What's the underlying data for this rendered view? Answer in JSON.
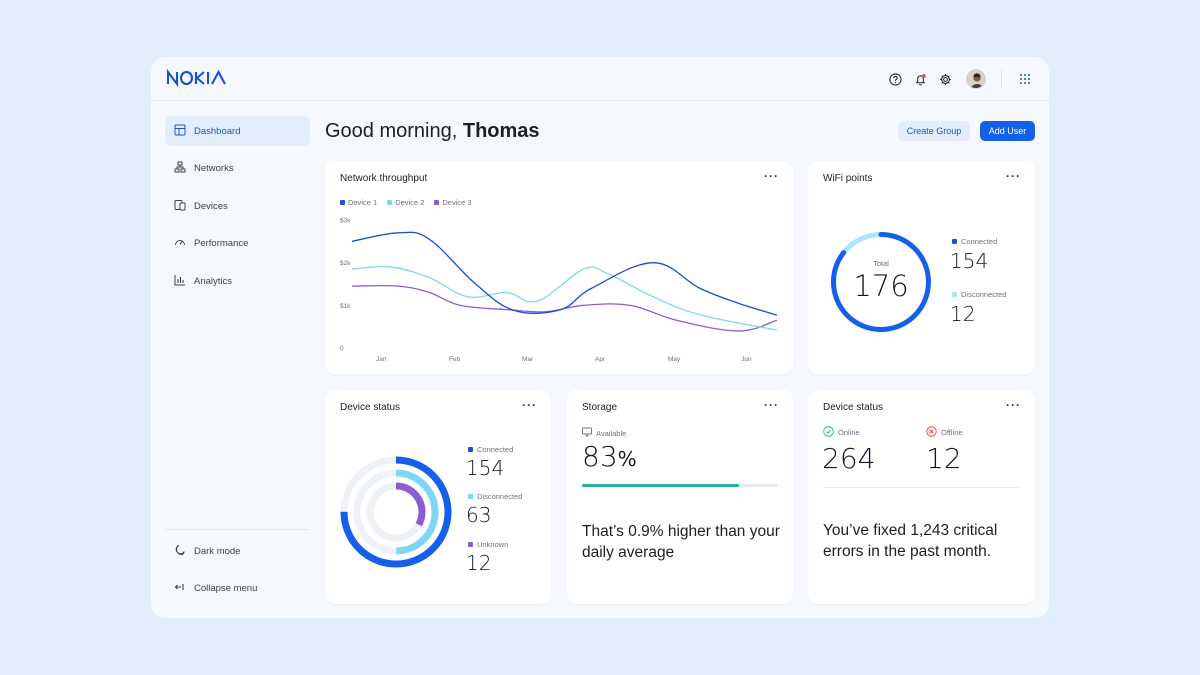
{
  "brand": {
    "logo_text": "NOKIA"
  },
  "topbar": {
    "icons": [
      "help-icon",
      "bell-icon",
      "settings-icon",
      "avatar",
      "apps-grid-icon"
    ]
  },
  "sidebar": {
    "items": [
      {
        "label": "Dashboard",
        "icon": "dashboard-icon",
        "active": true
      },
      {
        "label": "Networks",
        "icon": "network-icon",
        "active": false
      },
      {
        "label": "Devices",
        "icon": "devices-icon",
        "active": false
      },
      {
        "label": "Performance",
        "icon": "gauge-icon",
        "active": false
      },
      {
        "label": "Analytics",
        "icon": "bar-chart-icon",
        "active": false
      }
    ],
    "bottom": [
      {
        "label": "Dark mode",
        "icon": "moon-icon"
      },
      {
        "label": "Collapse menu",
        "icon": "collapse-icon"
      }
    ]
  },
  "header": {
    "greeting_prefix": "Good morning, ",
    "user_name": "Thomas",
    "create_group_label": "Create Group",
    "add_user_label": "Add User"
  },
  "throughput": {
    "title": "Network throughput",
    "more": "···"
  },
  "wifi": {
    "title": "WiFi points",
    "more": "···",
    "total_label": "Total",
    "total": "176",
    "connected_label": "Connected",
    "connected": "154",
    "disconnected_label": "Disconnected",
    "disconnected": "12"
  },
  "device_status_rings": {
    "title": "Device status",
    "more": "···",
    "connected_label": "Connected",
    "connected": "154",
    "disconnected_label": "Disconnected",
    "disconnected": "63",
    "unknown_label": "Unknown",
    "unknown": "12"
  },
  "storage": {
    "title": "Storage",
    "more": "···",
    "available_label": "Available",
    "percent": "83",
    "percent_sign": "%",
    "fill_fraction": 0.8,
    "note": "That’s 0.9% higher than your daily average"
  },
  "device_status_counts": {
    "title": "Device status",
    "more": "···",
    "online_label": "Online",
    "online": "264",
    "offline_label": "Offline",
    "offline": "12",
    "note": "You’ve fixed 1,243 critical errors in the past month."
  },
  "colors": {
    "primary": "#1560e8",
    "device1": "#1a4fcf",
    "device2": "#7fd6f2",
    "device3": "#8c5bd6",
    "teal": "#22b39a",
    "ring_bg": "#eef1f5"
  },
  "chart_data": {
    "type": "line",
    "categories": [
      "Jan",
      "Feb",
      "Mar",
      "Apr",
      "May",
      "Jun"
    ],
    "y_ticks": [
      "0",
      "$1k",
      "$2k",
      "$3k"
    ],
    "ylim": [
      0,
      3000
    ],
    "series": [
      {
        "name": "Device 1",
        "color": "#1a4fcf",
        "x": [
          0.0,
          0.6,
          1.0,
          1.6,
          2.1,
          2.7,
          3.1,
          3.9,
          4.5,
          5.0,
          5.5
        ],
        "values": [
          2500,
          2700,
          2550,
          1500,
          880,
          900,
          1400,
          2000,
          1400,
          1050,
          770
        ]
      },
      {
        "name": "Device 2",
        "color": "#7fd6f2",
        "x": [
          0.0,
          0.5,
          1.0,
          1.5,
          2.0,
          2.4,
          3.0,
          3.3,
          3.9,
          4.5,
          5.5
        ],
        "values": [
          1850,
          1900,
          1650,
          1200,
          1300,
          1100,
          1850,
          1750,
          1200,
          780,
          420
        ]
      },
      {
        "name": "Device 3",
        "color": "#8c5bd6",
        "x": [
          0.0,
          0.6,
          1.0,
          1.4,
          2.0,
          2.5,
          3.0,
          3.6,
          4.2,
          5.0,
          5.5
        ],
        "values": [
          1450,
          1450,
          1300,
          1000,
          900,
          850,
          1000,
          1000,
          650,
          400,
          650
        ]
      }
    ]
  }
}
